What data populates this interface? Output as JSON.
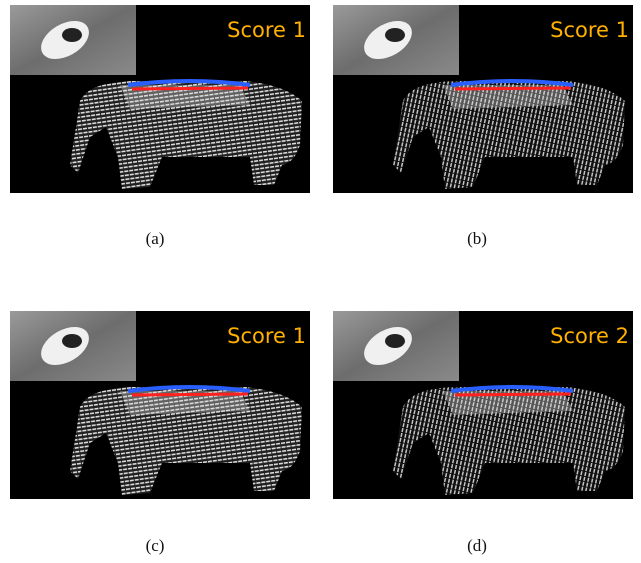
{
  "panels": [
    {
      "score": "Score 1",
      "caption": "(a)"
    },
    {
      "score": "Score 1",
      "caption": "(b)"
    },
    {
      "score": "Score 1",
      "caption": "(c)"
    },
    {
      "score": "Score 2",
      "caption": "(d)"
    }
  ]
}
